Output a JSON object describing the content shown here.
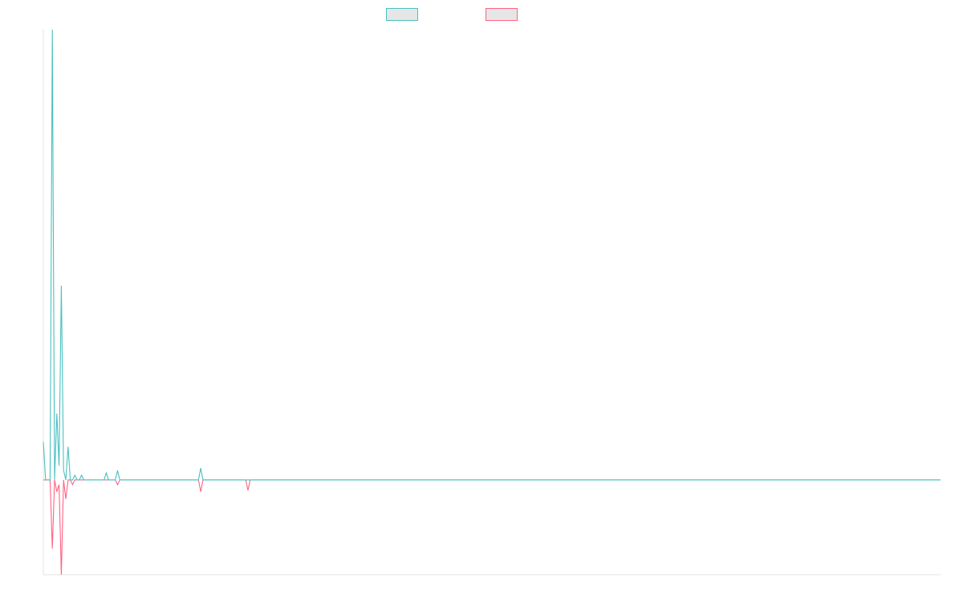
{
  "chart_data": {
    "type": "line",
    "title": "",
    "xlabel": "",
    "ylabel": "",
    "grid": false,
    "legend_position": "top-center",
    "x_range": [
      0,
      399
    ],
    "ylim": [
      -20,
      95
    ],
    "series": [
      {
        "color": "#4bc0c0",
        "legend_fill": "#e6e6e6",
        "points": [
          [
            0,
            8
          ],
          [
            1,
            0
          ],
          [
            2,
            0
          ],
          [
            3,
            0
          ],
          [
            4,
            95
          ],
          [
            5,
            0
          ],
          [
            6,
            14
          ],
          [
            7,
            3
          ],
          [
            8,
            41
          ],
          [
            9,
            2
          ],
          [
            10,
            0
          ],
          [
            11,
            7
          ],
          [
            12,
            0
          ],
          [
            13,
            0
          ],
          [
            14,
            1
          ],
          [
            15,
            0
          ],
          [
            16,
            0
          ],
          [
            17,
            1
          ],
          [
            18,
            0
          ],
          [
            19,
            0
          ],
          [
            20,
            0
          ],
          [
            21,
            0
          ],
          [
            22,
            0
          ],
          [
            23,
            0
          ],
          [
            24,
            0
          ],
          [
            25,
            0
          ],
          [
            26,
            0
          ],
          [
            27,
            0
          ],
          [
            28,
            1.5
          ],
          [
            29,
            0
          ],
          [
            30,
            0
          ],
          [
            31,
            0
          ],
          [
            32,
            0
          ],
          [
            33,
            2
          ],
          [
            34,
            0
          ],
          [
            35,
            0
          ],
          [
            69,
            0
          ],
          [
            70,
            2.5
          ],
          [
            71,
            0
          ],
          [
            399,
            0
          ]
        ]
      },
      {
        "color": "#ff6384",
        "legend_fill": "#e6e6e6",
        "points": [
          [
            0,
            0
          ],
          [
            1,
            0
          ],
          [
            2,
            0
          ],
          [
            3,
            0
          ],
          [
            4,
            -14.5
          ],
          [
            5,
            0
          ],
          [
            6,
            -2.5
          ],
          [
            7,
            -1
          ],
          [
            8,
            -20
          ],
          [
            9,
            0
          ],
          [
            10,
            -4
          ],
          [
            11,
            0
          ],
          [
            12,
            0
          ],
          [
            13,
            -1
          ],
          [
            14,
            0
          ],
          [
            15,
            0
          ],
          [
            16,
            0
          ],
          [
            17,
            0
          ],
          [
            18,
            0
          ],
          [
            19,
            0
          ],
          [
            20,
            0
          ],
          [
            21,
            0
          ],
          [
            22,
            0
          ],
          [
            23,
            0
          ],
          [
            24,
            0
          ],
          [
            25,
            0
          ],
          [
            26,
            0
          ],
          [
            27,
            0
          ],
          [
            28,
            0
          ],
          [
            29,
            0
          ],
          [
            30,
            0
          ],
          [
            31,
            0
          ],
          [
            32,
            0
          ],
          [
            33,
            -1
          ],
          [
            34,
            0
          ],
          [
            35,
            0
          ],
          [
            69,
            0
          ],
          [
            70,
            -2.5
          ],
          [
            71,
            0
          ],
          [
            90,
            0
          ],
          [
            91,
            -2.2
          ],
          [
            92,
            0
          ],
          [
            399,
            0
          ]
        ]
      }
    ]
  }
}
